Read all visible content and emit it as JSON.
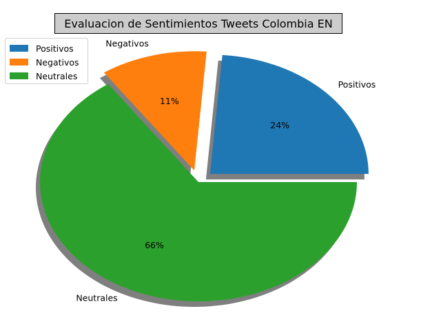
{
  "chart_data": {
    "type": "pie",
    "title": "Evaluacion de Sentimientos Tweets Colombia EN",
    "categories": [
      "Positivos",
      "Negativos",
      "Neutrales"
    ],
    "values": [
      24,
      11,
      66
    ],
    "percent_labels": [
      "24%",
      "11%",
      "66%"
    ],
    "colors": [
      "#1f77b4",
      "#ff7f0e",
      "#2ca02c"
    ],
    "explode": [
      0.1,
      0.1,
      0
    ],
    "shadow": true,
    "start_angle_deg": 0,
    "legend": {
      "placement": "top-left",
      "entries": [
        "Positivos",
        "Negativos",
        "Neutrales"
      ]
    }
  }
}
